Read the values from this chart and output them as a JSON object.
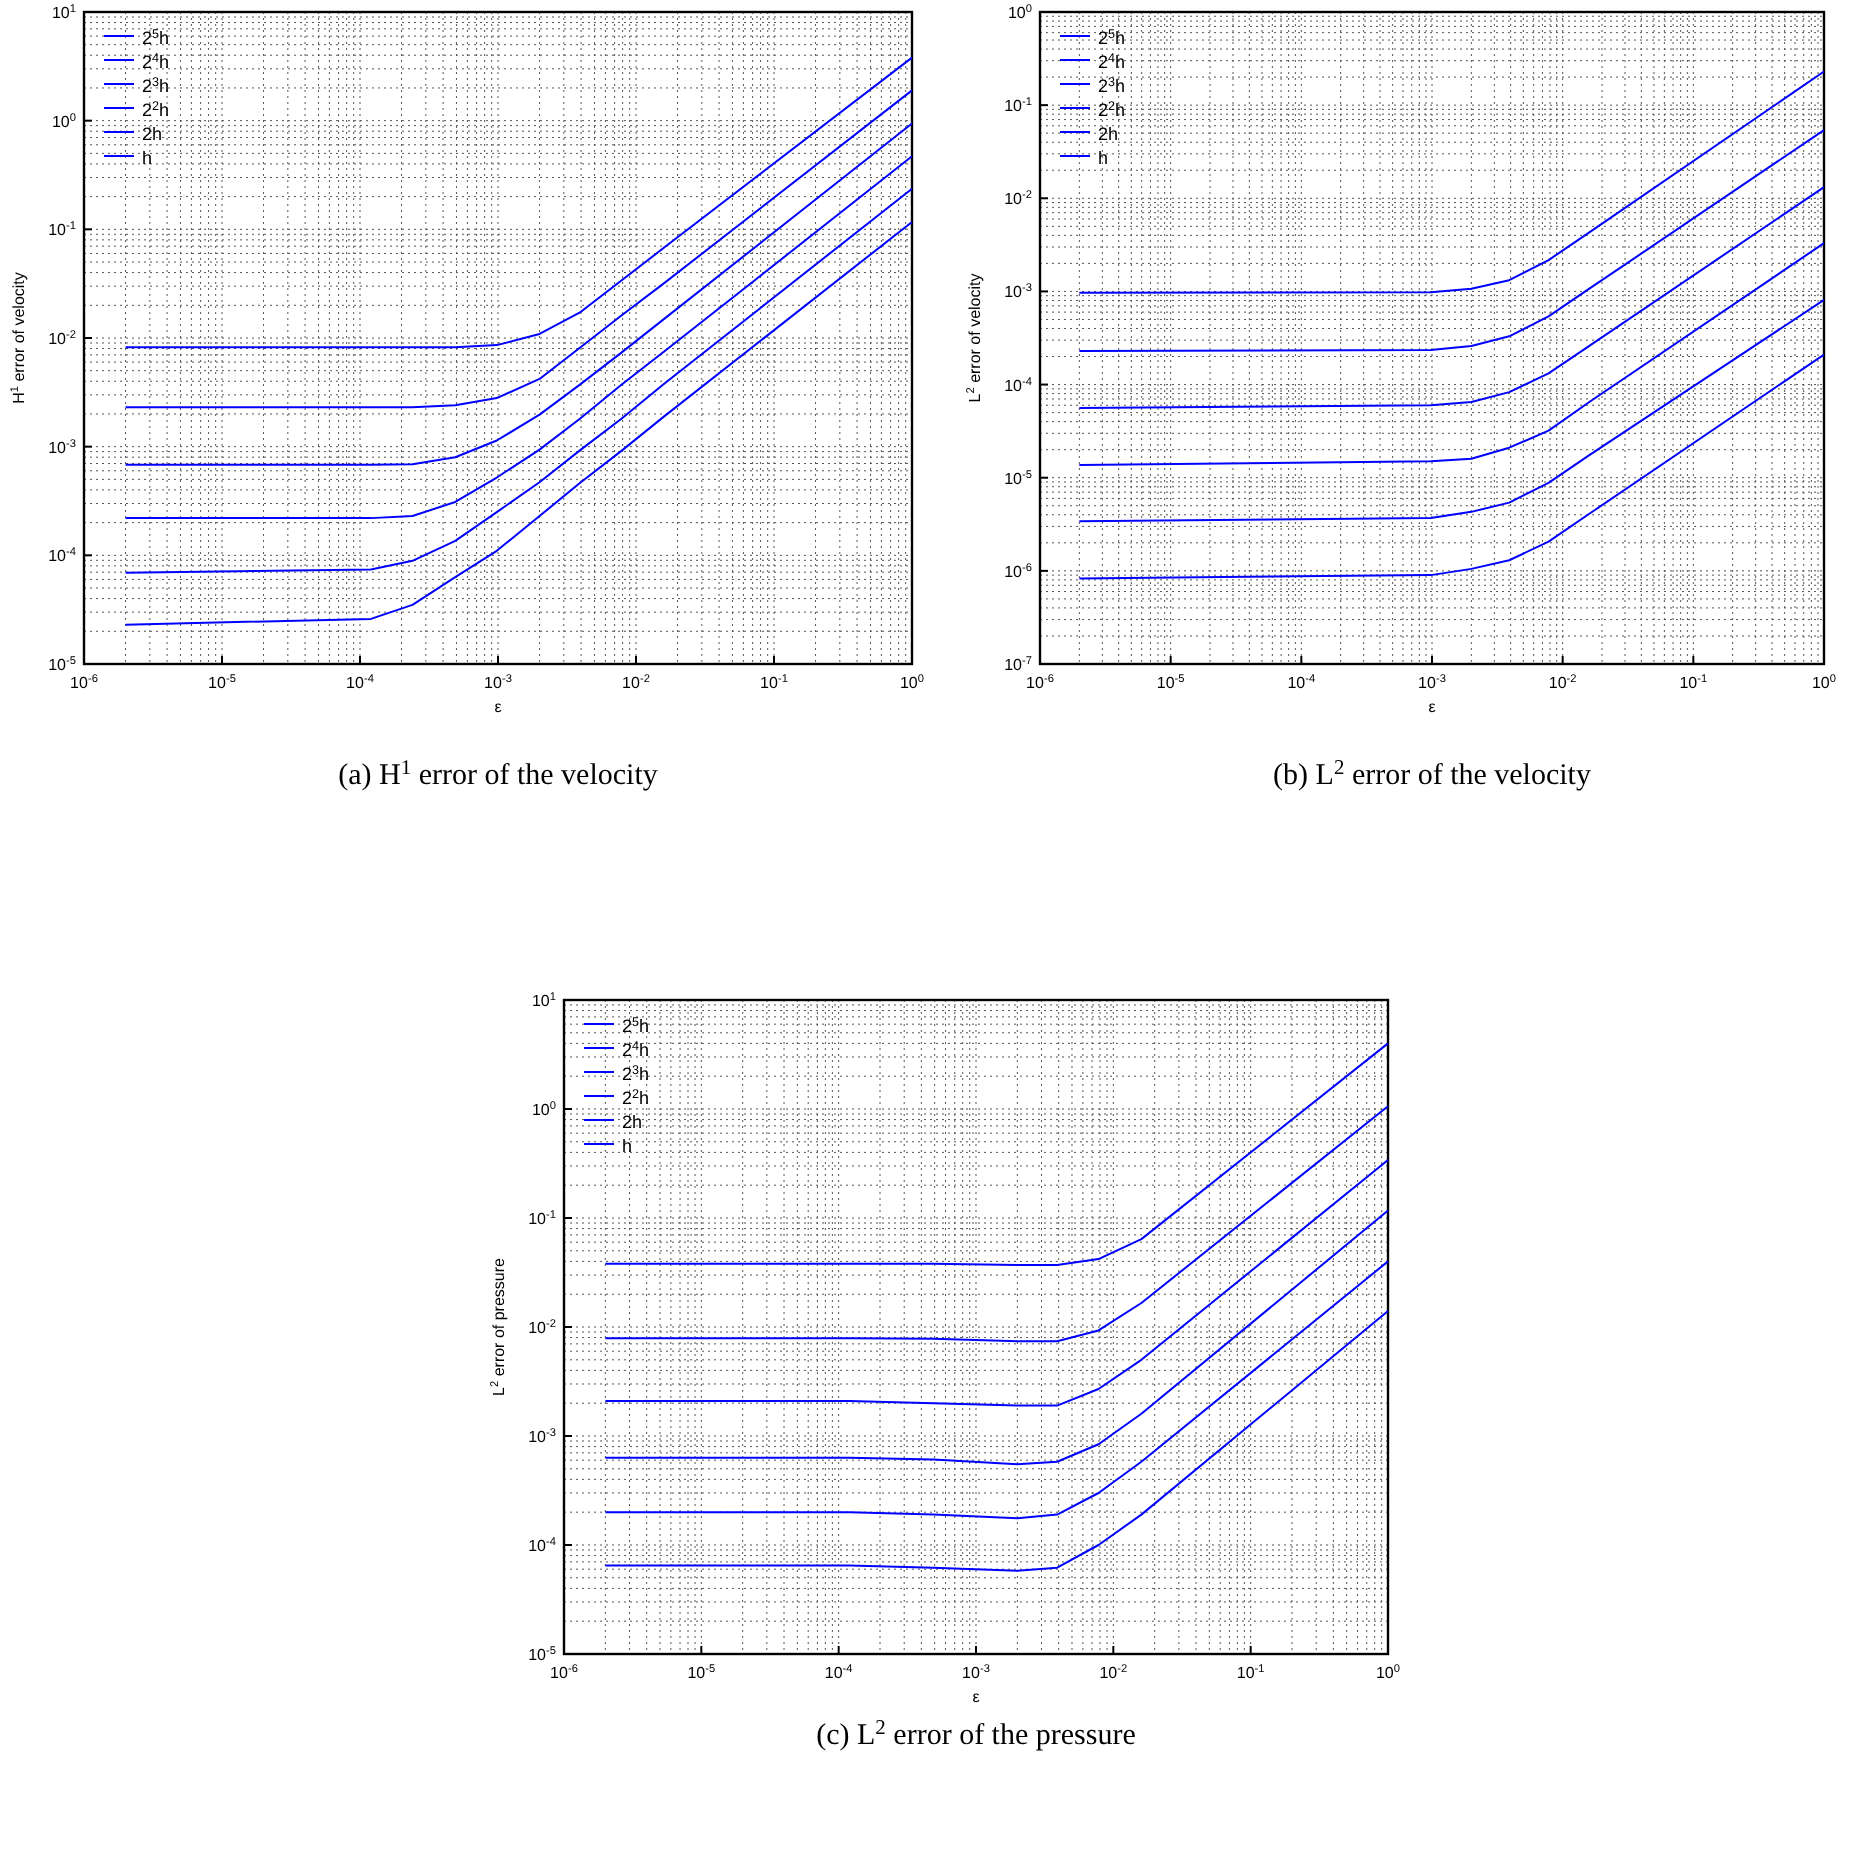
{
  "chart_data": [
    {
      "type": "line",
      "xlabel": "ε",
      "ylabel": "H$^{1}$ error of velocity",
      "annotations": [
        "(a) H$^{1}$ error of the velocity"
      ],
      "log": "xy",
      "grid": true,
      "legend": "top left",
      "marker": "none",
      "line_style": "solid",
      "xlim": [
        1e-06,
        1
      ],
      "ylim": [
        1e-05,
        10
      ],
      "xticks": [
        {
          "value": 1e-06,
          "label": "10$^{-6}$"
        },
        {
          "value": 1e-05,
          "label": "10$^{-5}$"
        },
        {
          "value": 0.0001,
          "label": "10$^{-4}$"
        },
        {
          "value": 0.001,
          "label": "10$^{-3}$"
        },
        {
          "value": 0.01,
          "label": "10$^{-2}$"
        },
        {
          "value": 0.1,
          "label": "10$^{-1}$"
        },
        {
          "value": 1,
          "label": "10$^{0}$"
        }
      ],
      "yticks": [
        {
          "value": 1e-05,
          "label": "10$^{-5}$"
        },
        {
          "value": 0.0001,
          "label": "10$^{-4}$"
        },
        {
          "value": 0.001,
          "label": "10$^{-3}$"
        },
        {
          "value": 0.01,
          "label": "10$^{-2}$"
        },
        {
          "value": 0.1,
          "label": "10$^{-1}$"
        },
        {
          "value": 1,
          "label": "10$^{0}$"
        },
        {
          "value": 10,
          "label": "10$^{1}$"
        }
      ],
      "x": [
        2e-06,
        0.00012,
        0.00024,
        0.00049,
        0.00098,
        0.002,
        0.0039,
        0.0078,
        0.016,
        1
      ],
      "series": [
        {
          "name": "2$^{5}$h",
          "color": "#0000ff",
          "values": [
            0.0082,
            0.0082,
            0.0082,
            0.0082,
            0.0086,
            0.0109,
            0.0171,
            0.0336,
            0.068,
            3.8
          ]
        },
        {
          "name": "2$^{4}$h",
          "color": "#0000ff",
          "values": [
            0.0023,
            0.0023,
            0.0023,
            0.0024,
            0.0028,
            0.0042,
            0.0081,
            0.016,
            0.032,
            1.9
          ]
        },
        {
          "name": "2$^{3}$h",
          "color": "#0000ff",
          "values": [
            0.00068,
            0.00068,
            0.00069,
            0.0008,
            0.00114,
            0.00197,
            0.0037,
            0.0073,
            0.015,
            0.94
          ]
        },
        {
          "name": "2$^{2}$h",
          "color": "#0000ff",
          "values": [
            0.00022,
            0.00022,
            0.00023,
            0.00031,
            0.00052,
            0.00094,
            0.0018,
            0.0037,
            0.0075,
            0.47
          ]
        },
        {
          "name": "2h",
          "color": "#0000ff",
          "values": [
            6.9e-05,
            7.4e-05,
            8.9e-05,
            0.000136,
            0.00025,
            0.00047,
            0.00092,
            0.0018,
            0.0038,
            0.236
          ]
        },
        {
          "name": "h",
          "color": "#0000ff",
          "values": [
            2.3e-05,
            2.6e-05,
            3.5e-05,
            6.3e-05,
            0.00011,
            0.00023,
            0.00046,
            0.00091,
            0.0019,
            0.117
          ]
        }
      ]
    },
    {
      "type": "line",
      "xlabel": "ε",
      "ylabel": "L$^{2}$ error of velocity",
      "annotations": [
        "(b) L$^{2}$ error of the velocity"
      ],
      "log": "xy",
      "grid": true,
      "legend": "top left",
      "marker": "none",
      "line_style": "solid",
      "xlim": [
        1e-06,
        1
      ],
      "ylim": [
        1e-07,
        1
      ],
      "xticks": [
        {
          "value": 1e-06,
          "label": "10$^{-6}$"
        },
        {
          "value": 1e-05,
          "label": "10$^{-5}$"
        },
        {
          "value": 0.0001,
          "label": "10$^{-4}$"
        },
        {
          "value": 0.001,
          "label": "10$^{-3}$"
        },
        {
          "value": 0.01,
          "label": "10$^{-2}$"
        },
        {
          "value": 0.1,
          "label": "10$^{-1}$"
        },
        {
          "value": 1,
          "label": "10$^{0}$"
        }
      ],
      "yticks": [
        {
          "value": 1e-07,
          "label": "10$^{-7}$"
        },
        {
          "value": 1e-06,
          "label": "10$^{-6}$"
        },
        {
          "value": 1e-05,
          "label": "10$^{-5}$"
        },
        {
          "value": 0.0001,
          "label": "10$^{-4}$"
        },
        {
          "value": 0.001,
          "label": "10$^{-3}$"
        },
        {
          "value": 0.01,
          "label": "10$^{-2}$"
        },
        {
          "value": 0.1,
          "label": "10$^{-1}$"
        },
        {
          "value": 1,
          "label": "10$^{0}$"
        }
      ],
      "x": [
        2e-06,
        0.00098,
        0.002,
        0.0039,
        0.0078,
        0.016,
        1
      ],
      "series": [
        {
          "name": "2$^{5}$h",
          "color": "#0000ff",
          "values": [
            0.00097,
            0.00098,
            0.00107,
            0.00132,
            0.00217,
            0.0043,
            0.23
          ]
        },
        {
          "name": "2$^{4}$h",
          "color": "#0000ff",
          "values": [
            0.00023,
            0.000235,
            0.00026,
            0.00033,
            0.00054,
            0.00107,
            0.054
          ]
        },
        {
          "name": "2$^{3}$h",
          "color": "#0000ff",
          "values": [
            5.6e-05,
            6e-05,
            6.5e-05,
            8.3e-05,
            0.000132,
            0.00026,
            0.0132
          ]
        },
        {
          "name": "2$^{2}$h",
          "color": "#0000ff",
          "values": [
            1.37e-05,
            1.5e-05,
            1.6e-05,
            2.1e-05,
            3.2e-05,
            6.5e-05,
            0.0033
          ]
        },
        {
          "name": "2h",
          "color": "#0000ff",
          "values": [
            3.4e-06,
            3.7e-06,
            4.3e-06,
            5.4e-06,
            8.8e-06,
            1.75e-05,
            0.00081
          ]
        },
        {
          "name": "h",
          "color": "#0000ff",
          "values": [
            8.3e-07,
            9e-07,
            1.05e-06,
            1.3e-06,
            2.06e-06,
            4.1e-06,
            0.00021
          ]
        }
      ]
    },
    {
      "type": "line",
      "xlabel": "ε",
      "ylabel": "L$^{2}$ error of pressure",
      "annotations": [
        "(c) L$^{2}$ error of the pressure"
      ],
      "log": "xy",
      "grid": true,
      "legend": "top left",
      "marker": "none",
      "line_style": "solid",
      "xlim": [
        1e-06,
        1
      ],
      "ylim": [
        1e-05,
        10
      ],
      "xticks": [
        {
          "value": 1e-06,
          "label": "10$^{-6}$"
        },
        {
          "value": 1e-05,
          "label": "10$^{-5}$"
        },
        {
          "value": 0.0001,
          "label": "10$^{-4}$"
        },
        {
          "value": 0.001,
          "label": "10$^{-3}$"
        },
        {
          "value": 0.01,
          "label": "10$^{-2}$"
        },
        {
          "value": 0.1,
          "label": "10$^{-1}$"
        },
        {
          "value": 1,
          "label": "10$^{0}$"
        }
      ],
      "yticks": [
        {
          "value": 1e-05,
          "label": "10$^{-5}$"
        },
        {
          "value": 0.0001,
          "label": "10$^{-4}$"
        },
        {
          "value": 0.001,
          "label": "10$^{-3}$"
        },
        {
          "value": 0.01,
          "label": "10$^{-2}$"
        },
        {
          "value": 0.1,
          "label": "10$^{-1}$"
        },
        {
          "value": 1,
          "label": "10$^{0}$"
        },
        {
          "value": 10,
          "label": "10$^{1}$"
        }
      ],
      "x": [
        2e-06,
        0.00012,
        0.00049,
        0.002,
        0.0039,
        0.0078,
        0.016,
        1
      ],
      "series": [
        {
          "name": "2$^{5}$h",
          "color": "#0000ff",
          "values": [
            0.038,
            0.038,
            0.038,
            0.037,
            0.037,
            0.042,
            0.064,
            4.0
          ]
        },
        {
          "name": "2$^{4}$h",
          "color": "#0000ff",
          "values": [
            0.0079,
            0.0079,
            0.0078,
            0.0074,
            0.0074,
            0.0093,
            0.0166,
            1.06
          ]
        },
        {
          "name": "2$^{3}$h",
          "color": "#0000ff",
          "values": [
            0.0021,
            0.0021,
            0.002,
            0.0019,
            0.0019,
            0.0027,
            0.005,
            0.34
          ]
        },
        {
          "name": "2$^{2}$h",
          "color": "#0000ff",
          "values": [
            0.00063,
            0.00063,
            0.00061,
            0.00055,
            0.00058,
            0.00084,
            0.0016,
            0.117
          ]
        },
        {
          "name": "2h",
          "color": "#0000ff",
          "values": [
            0.0002,
            0.0002,
            0.00019,
            0.000176,
            0.00019,
            0.0003,
            0.00058,
            0.04
          ]
        },
        {
          "name": "h",
          "color": "#0000ff",
          "values": [
            6.5e-05,
            6.5e-05,
            6.2e-05,
            5.8e-05,
            6.2e-05,
            0.0001,
            0.00019,
            0.014
          ]
        }
      ]
    }
  ]
}
